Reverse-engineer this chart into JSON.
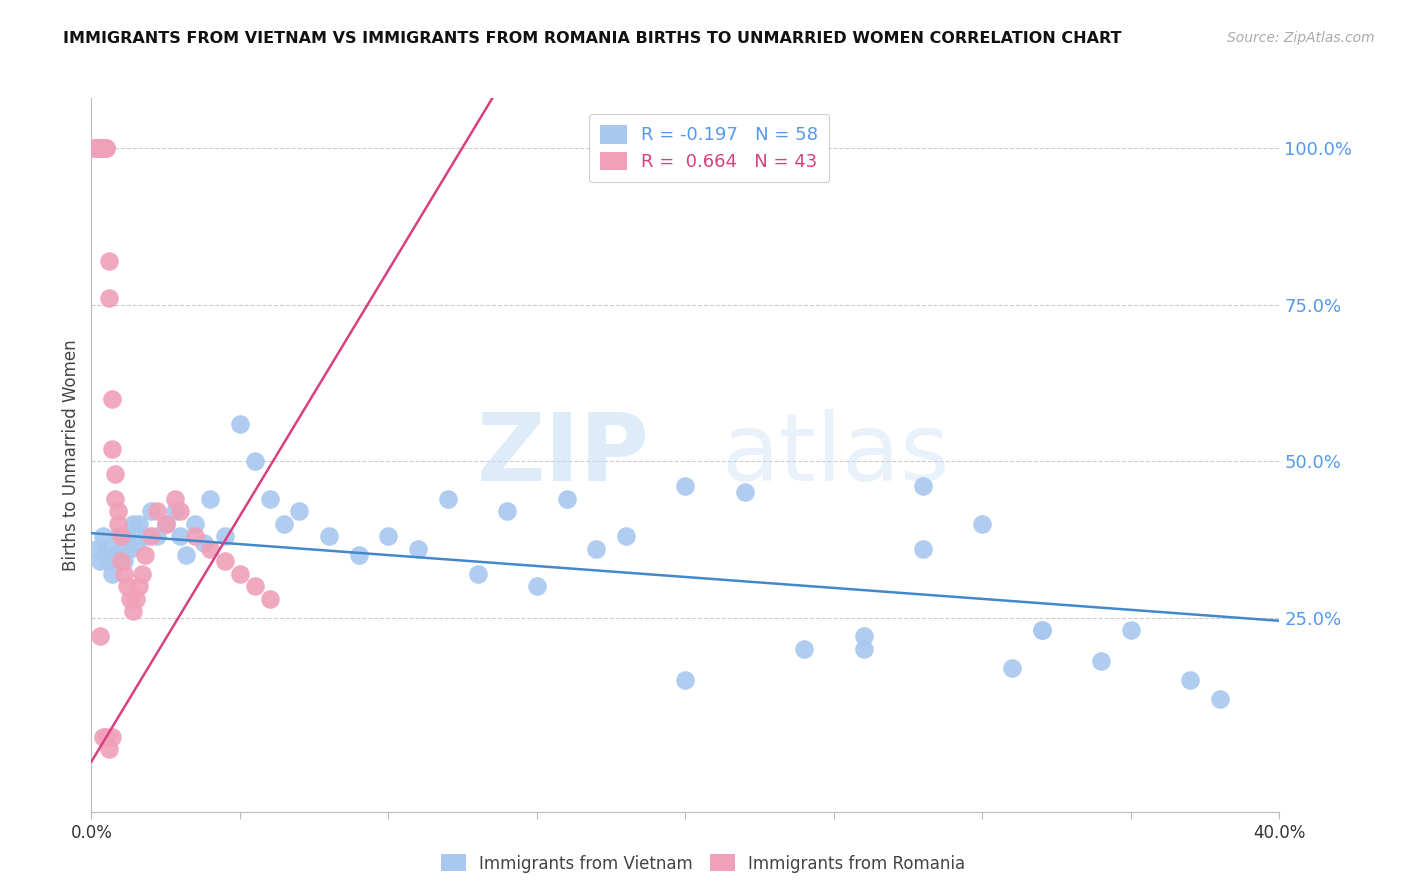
{
  "title": "IMMIGRANTS FROM VIETNAM VS IMMIGRANTS FROM ROMANIA BIRTHS TO UNMARRIED WOMEN CORRELATION CHART",
  "source": "Source: ZipAtlas.com",
  "ylabel": "Births to Unmarried Women",
  "right_yticks": [
    "100.0%",
    "75.0%",
    "50.0%",
    "25.0%"
  ],
  "right_ytick_vals": [
    1.0,
    0.75,
    0.5,
    0.25
  ],
  "xlim": [
    0.0,
    0.4
  ],
  "ylim": [
    -0.06,
    1.08
  ],
  "vietnam_color": "#a8c8f0",
  "romania_color": "#f0a0b8",
  "vietnam_line_color": "#4488cc",
  "romania_line_color": "#d94080",
  "watermark_zip": "ZIP",
  "watermark_atlas": "atlas",
  "vietnam_x": [
    0.002,
    0.003,
    0.004,
    0.005,
    0.006,
    0.007,
    0.008,
    0.009,
    0.01,
    0.011,
    0.012,
    0.013,
    0.014,
    0.015,
    0.016,
    0.018,
    0.02,
    0.022,
    0.025,
    0.028,
    0.03,
    0.032,
    0.035,
    0.038,
    0.04,
    0.045,
    0.05,
    0.055,
    0.06,
    0.065,
    0.07,
    0.08,
    0.09,
    0.1,
    0.11,
    0.12,
    0.13,
    0.14,
    0.15,
    0.16,
    0.17,
    0.18,
    0.2,
    0.22,
    0.24,
    0.26,
    0.28,
    0.3,
    0.32,
    0.35,
    0.37,
    0.28,
    0.32,
    0.26,
    0.2,
    0.38,
    0.34,
    0.31
  ],
  "vietnam_y": [
    0.36,
    0.34,
    0.38,
    0.36,
    0.34,
    0.32,
    0.35,
    0.38,
    0.36,
    0.34,
    0.38,
    0.36,
    0.4,
    0.37,
    0.4,
    0.38,
    0.42,
    0.38,
    0.4,
    0.42,
    0.38,
    0.35,
    0.4,
    0.37,
    0.44,
    0.38,
    0.56,
    0.5,
    0.44,
    0.4,
    0.42,
    0.38,
    0.35,
    0.38,
    0.36,
    0.44,
    0.32,
    0.42,
    0.3,
    0.44,
    0.36,
    0.38,
    0.46,
    0.45,
    0.2,
    0.2,
    0.36,
    0.4,
    0.23,
    0.23,
    0.15,
    0.46,
    0.23,
    0.22,
    0.15,
    0.12,
    0.18,
    0.17
  ],
  "romania_x": [
    0.001,
    0.002,
    0.002,
    0.003,
    0.003,
    0.004,
    0.004,
    0.005,
    0.005,
    0.006,
    0.006,
    0.007,
    0.007,
    0.008,
    0.008,
    0.009,
    0.009,
    0.01,
    0.01,
    0.011,
    0.012,
    0.013,
    0.014,
    0.015,
    0.016,
    0.017,
    0.018,
    0.02,
    0.022,
    0.025,
    0.028,
    0.03,
    0.035,
    0.04,
    0.045,
    0.05,
    0.055,
    0.06,
    0.003,
    0.004,
    0.005,
    0.006,
    0.007
  ],
  "romania_y": [
    1.0,
    1.0,
    1.0,
    1.0,
    1.0,
    1.0,
    1.0,
    1.0,
    1.0,
    0.82,
    0.76,
    0.6,
    0.52,
    0.48,
    0.44,
    0.42,
    0.4,
    0.38,
    0.34,
    0.32,
    0.3,
    0.28,
    0.26,
    0.28,
    0.3,
    0.32,
    0.35,
    0.38,
    0.42,
    0.4,
    0.44,
    0.42,
    0.38,
    0.36,
    0.34,
    0.32,
    0.3,
    0.28,
    0.22,
    0.06,
    0.06,
    0.04,
    0.06
  ],
  "viet_line_x0": 0.0,
  "viet_line_x1": 0.4,
  "viet_line_y0": 0.385,
  "viet_line_y1": 0.245,
  "rom_line_x0": 0.0,
  "rom_line_x1": 0.135,
  "rom_line_y0": 0.02,
  "rom_line_y1": 1.08
}
